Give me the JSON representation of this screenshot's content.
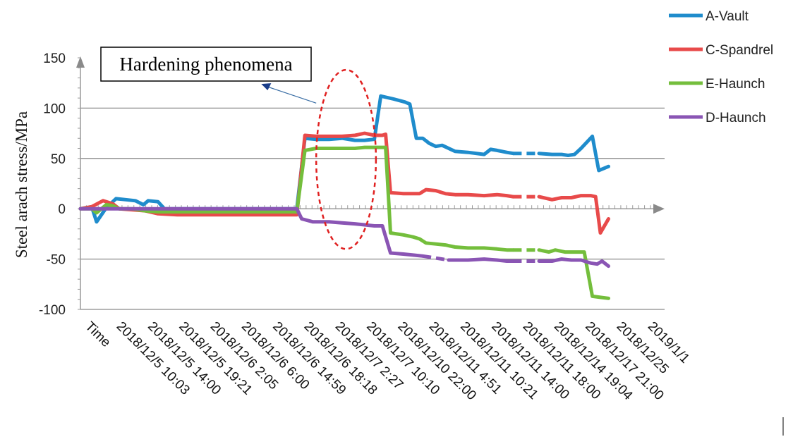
{
  "chart_data": {
    "type": "line",
    "ylabel": "Steel arach stress/MPa",
    "xlabel": "",
    "ylim": [
      -100,
      150
    ],
    "yticks": [
      150,
      100,
      50,
      0,
      -50,
      -100
    ],
    "xticks": [
      "Time",
      "2018/12/5 10:03",
      "2018/12/5 14:00",
      "2018/12/5 19:21",
      "2018/12/6 2:05",
      "2018/12/6 6:00",
      "2018/12/6 14:59",
      "2018/12/6 18:18",
      "2018/12/7 2:27",
      "2018/12/7 10:10",
      "2018/12/10 22:00",
      "2018/12/11 4:51",
      "2018/12/11 10:21",
      "2018/12/11 14:00",
      "2018/12/11 18:00",
      "2018/12/14 19:04",
      "2018/12/17 21:00",
      "2018/12/25",
      "2019/1/1"
    ],
    "x_max": 18,
    "grid": true,
    "legend_position": "top-right",
    "series": [
      {
        "name": "A-Vault",
        "color": "#1f8ccc",
        "points": [
          [
            0,
            0
          ],
          [
            0.35,
            2
          ],
          [
            0.5,
            -13
          ],
          [
            0.8,
            1
          ],
          [
            1.1,
            10
          ],
          [
            1.4,
            9
          ],
          [
            1.7,
            8
          ],
          [
            1.95,
            4
          ],
          [
            2.1,
            8
          ],
          [
            2.4,
            7
          ],
          [
            2.6,
            0
          ],
          [
            3,
            0
          ],
          [
            4,
            0
          ],
          [
            5,
            0
          ],
          [
            6,
            0
          ],
          [
            6.7,
            0
          ],
          [
            6.95,
            70
          ],
          [
            7.3,
            69
          ],
          [
            7.7,
            69
          ],
          [
            8.1,
            70
          ],
          [
            8.5,
            68
          ],
          [
            8.8,
            68
          ],
          [
            9.1,
            69
          ],
          [
            9.3,
            112
          ],
          [
            9.7,
            109
          ],
          [
            10.05,
            106
          ],
          [
            10.2,
            104
          ],
          [
            10.4,
            70
          ],
          [
            10.6,
            70
          ],
          [
            10.8,
            65
          ],
          [
            11.0,
            62
          ],
          [
            11.2,
            63
          ],
          [
            11.4,
            60
          ],
          [
            11.6,
            57
          ],
          [
            12,
            56
          ],
          [
            12.5,
            54
          ],
          [
            12.7,
            59
          ],
          [
            12.9,
            58
          ],
          [
            13.2,
            56
          ],
          [
            13.4,
            55
          ]
        ],
        "points_dashed": [
          [
            13.4,
            55
          ],
          [
            14.2,
            55
          ]
        ],
        "points_b": [
          [
            14.2,
            55
          ],
          [
            14.6,
            54
          ],
          [
            14.9,
            54
          ],
          [
            15.1,
            53
          ],
          [
            15.3,
            54
          ],
          [
            15.5,
            60
          ],
          [
            15.85,
            72
          ],
          [
            16.05,
            38
          ],
          [
            16.35,
            42
          ]
        ]
      },
      {
        "name": "C-Spandrel",
        "color": "#e84a4a",
        "points": [
          [
            0,
            0
          ],
          [
            0.35,
            2
          ],
          [
            0.7,
            8
          ],
          [
            1.0,
            5
          ],
          [
            1.2,
            0
          ],
          [
            1.6,
            -1
          ],
          [
            2.0,
            -2
          ],
          [
            2.4,
            -5
          ],
          [
            3,
            -6
          ],
          [
            4,
            -6
          ],
          [
            5,
            -6
          ],
          [
            6,
            -6
          ],
          [
            6.7,
            -6
          ],
          [
            6.95,
            73
          ],
          [
            7.3,
            72
          ],
          [
            7.7,
            72
          ],
          [
            8.1,
            72
          ],
          [
            8.5,
            73
          ],
          [
            8.8,
            75
          ],
          [
            9.1,
            73
          ],
          [
            9.35,
            73
          ],
          [
            9.45,
            74
          ],
          [
            9.6,
            16
          ],
          [
            10,
            15
          ],
          [
            10.3,
            15
          ],
          [
            10.5,
            15
          ],
          [
            10.7,
            19
          ],
          [
            11,
            18
          ],
          [
            11.3,
            15
          ],
          [
            11.6,
            14
          ],
          [
            12,
            14
          ],
          [
            12.5,
            13
          ],
          [
            12.9,
            14
          ],
          [
            13.2,
            13
          ],
          [
            13.4,
            12
          ]
        ],
        "points_dashed": [
          [
            13.4,
            12
          ],
          [
            14.2,
            12
          ]
        ],
        "points_b": [
          [
            14.2,
            12
          ],
          [
            14.6,
            9
          ],
          [
            14.9,
            11
          ],
          [
            15.2,
            11
          ],
          [
            15.5,
            13
          ],
          [
            15.8,
            13
          ],
          [
            15.95,
            12
          ],
          [
            16.1,
            -24
          ],
          [
            16.35,
            -10
          ]
        ]
      },
      {
        "name": "E-Haunch",
        "color": "#74be3c",
        "points": [
          [
            0,
            0
          ],
          [
            0.35,
            0
          ],
          [
            0.5,
            -4
          ],
          [
            0.8,
            4
          ],
          [
            1.0,
            3
          ],
          [
            1.2,
            0
          ],
          [
            1.6,
            0
          ],
          [
            2.0,
            -2
          ],
          [
            2.4,
            -3
          ],
          [
            3,
            -3
          ],
          [
            4,
            -3
          ],
          [
            5,
            -3
          ],
          [
            6,
            -3
          ],
          [
            6.7,
            -3
          ],
          [
            6.95,
            58
          ],
          [
            7.3,
            60
          ],
          [
            7.7,
            60
          ],
          [
            8.1,
            60
          ],
          [
            8.5,
            60
          ],
          [
            8.8,
            61
          ],
          [
            9.1,
            61
          ],
          [
            9.35,
            61
          ],
          [
            9.45,
            61
          ],
          [
            9.6,
            -24
          ],
          [
            10,
            -26
          ],
          [
            10.3,
            -28
          ],
          [
            10.5,
            -30
          ],
          [
            10.7,
            -34
          ],
          [
            11,
            -35
          ],
          [
            11.3,
            -36
          ],
          [
            11.6,
            -38
          ],
          [
            12,
            -39
          ],
          [
            12.5,
            -39
          ],
          [
            12.9,
            -40
          ],
          [
            13.2,
            -41
          ],
          [
            13.4,
            -41
          ]
        ],
        "points_dashed": [
          [
            13.4,
            -41
          ],
          [
            14.2,
            -41
          ]
        ],
        "points_b": [
          [
            14.2,
            -41
          ],
          [
            14.5,
            -43
          ],
          [
            14.7,
            -41
          ],
          [
            15.0,
            -43
          ],
          [
            15.3,
            -43
          ],
          [
            15.6,
            -43
          ],
          [
            15.85,
            -87
          ],
          [
            16.1,
            -88
          ],
          [
            16.35,
            -89
          ]
        ]
      },
      {
        "name": "D-Haunch",
        "color": "#8a55b4",
        "points": [
          [
            0,
            0
          ],
          [
            1,
            0
          ],
          [
            2,
            0
          ],
          [
            3,
            0
          ],
          [
            4,
            0
          ],
          [
            5,
            0
          ],
          [
            6,
            0
          ],
          [
            6.7,
            0
          ],
          [
            6.85,
            -10
          ],
          [
            7.2,
            -13
          ],
          [
            7.7,
            -13
          ],
          [
            8.1,
            -14
          ],
          [
            8.5,
            -15
          ],
          [
            8.8,
            -16
          ],
          [
            9.1,
            -17
          ],
          [
            9.35,
            -17
          ],
          [
            9.6,
            -44
          ],
          [
            10,
            -45
          ],
          [
            10.3,
            -46
          ],
          [
            10.6,
            -47
          ]
        ],
        "points_dashed": [
          [
            10.6,
            -47
          ],
          [
            11.4,
            -51
          ]
        ],
        "points_b": [
          [
            11.4,
            -51
          ],
          [
            11.7,
            -51
          ],
          [
            12,
            -51
          ],
          [
            12.5,
            -50
          ],
          [
            12.9,
            -51
          ],
          [
            13.2,
            -52
          ],
          [
            13.4,
            -52
          ]
        ],
        "points_dashed2": [
          [
            13.4,
            -52
          ],
          [
            14.2,
            -52
          ]
        ],
        "points_c": [
          [
            14.2,
            -52
          ],
          [
            14.6,
            -52
          ],
          [
            14.9,
            -50
          ],
          [
            15.2,
            -51
          ],
          [
            15.5,
            -51
          ],
          [
            15.8,
            -54
          ],
          [
            16.0,
            -55
          ],
          [
            16.15,
            -52
          ],
          [
            16.35,
            -57
          ]
        ]
      }
    ],
    "annotation": {
      "text": "Hardening phenomena",
      "ellipse_x_range": [
        7.3,
        9.15
      ],
      "ellipse_y_range": [
        -40,
        138
      ],
      "arrow_to": [
        5.6,
        124
      ],
      "arrow_from": [
        7.3,
        105
      ]
    }
  }
}
